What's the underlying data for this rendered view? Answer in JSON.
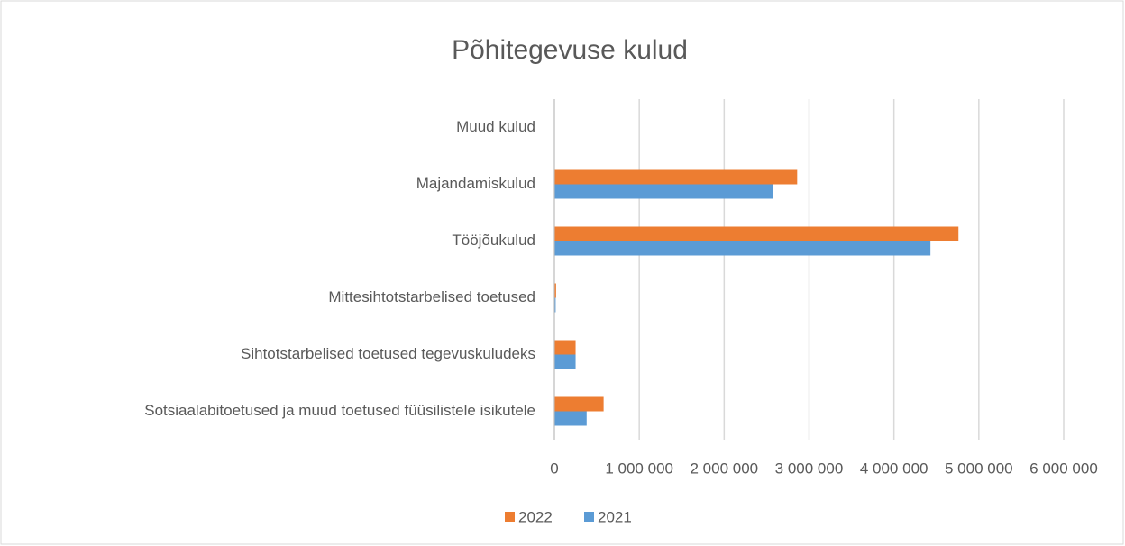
{
  "chart_data": {
    "type": "hbar",
    "title": "Põhitegevuse kulud",
    "categories": [
      "Muud kulud",
      "Majandamiskulud",
      "Tööjõukulud",
      "Mittesihtotstarbelised toetused",
      "Sihtotstarbelised toetused tegevuskuludeks",
      "Sotsiaalabitoetused ja muud toetused füüsilistele isikutele"
    ],
    "series": [
      {
        "name": "2022",
        "color": "#ed7d31",
        "values": [
          0,
          2860000,
          4760000,
          20000,
          250000,
          580000
        ]
      },
      {
        "name": "2021",
        "color": "#5b9bd5",
        "values": [
          0,
          2570000,
          4430000,
          15000,
          250000,
          380000
        ]
      }
    ],
    "xlim": [
      0,
      6000000
    ],
    "xticks": [
      0,
      {
        "value": 1000000,
        "label": "1 000 000"
      },
      {
        "value": 2000000,
        "label": "2 000 000"
      },
      {
        "value": 3000000,
        "label": "3 000 000"
      },
      {
        "value": 4000000,
        "label": "4 000 000"
      },
      {
        "value": 5000000,
        "label": "5 000 000"
      },
      {
        "value": 6000000,
        "label": "6 000 000"
      }
    ],
    "grid": true,
    "legend": "bottom"
  }
}
